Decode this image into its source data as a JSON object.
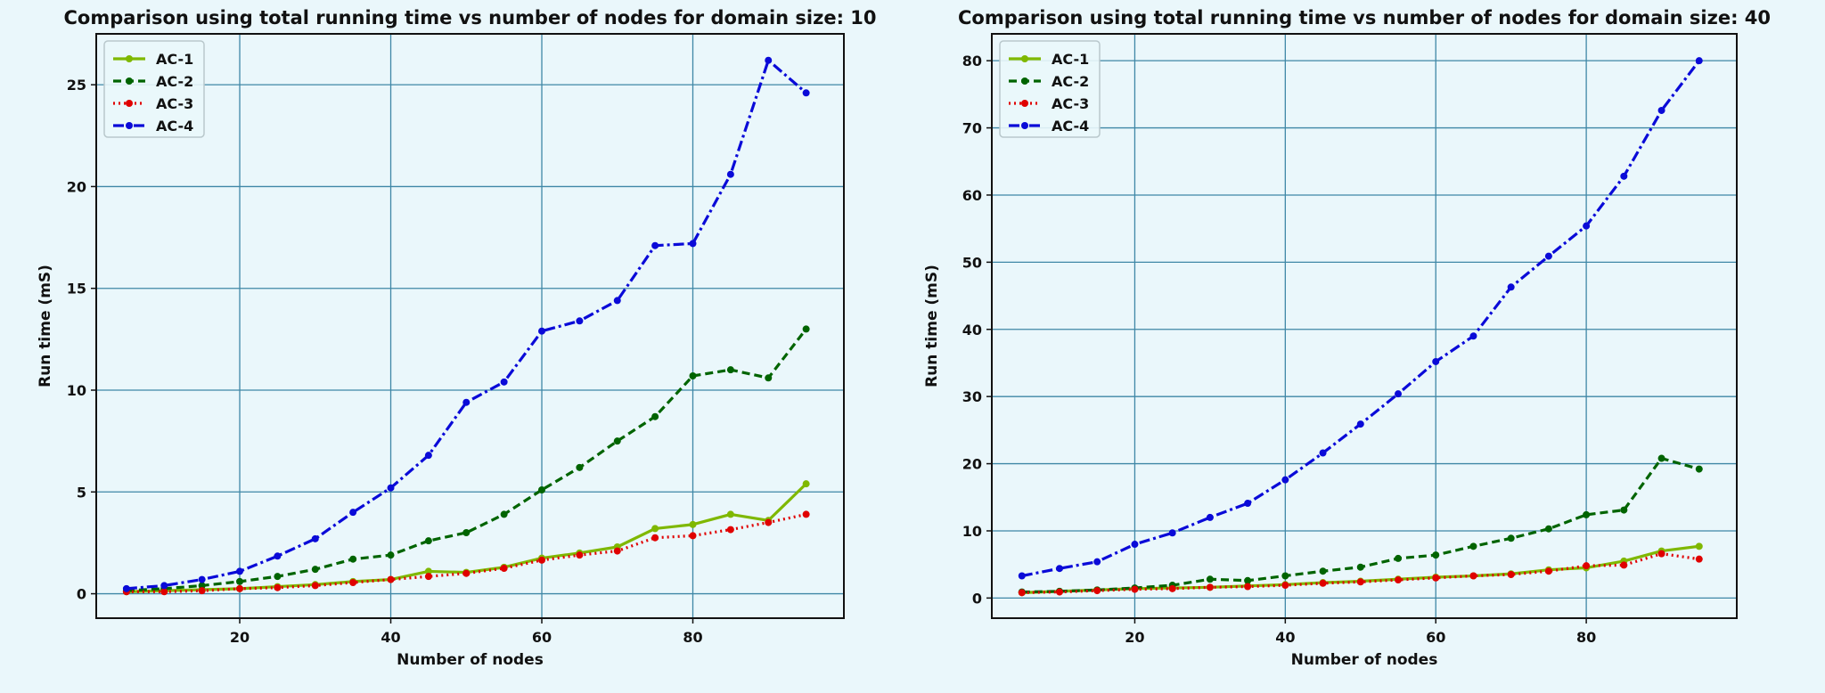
{
  "chart_data": [
    {
      "type": "line",
      "title": "Comparison using total running time vs number of nodes for domain size: 10",
      "xlabel": "Number of nodes",
      "ylabel": "Run time (mS)",
      "x": [
        5,
        10,
        15,
        20,
        25,
        30,
        35,
        40,
        45,
        50,
        55,
        60,
        65,
        70,
        75,
        80,
        85,
        90,
        95
      ],
      "xlim": [
        1,
        100
      ],
      "ylim": [
        -1.2,
        27.5
      ],
      "xticks": [
        20,
        40,
        60,
        80
      ],
      "yticks": [
        0,
        5,
        10,
        15,
        20,
        25
      ],
      "grid": true,
      "legend_position": "upper-left",
      "series": [
        {
          "name": "AC-1",
          "color": "#7fb800",
          "style": "solid",
          "values": [
            0.1,
            0.15,
            0.2,
            0.25,
            0.35,
            0.45,
            0.6,
            0.7,
            1.1,
            1.05,
            1.3,
            1.75,
            2.0,
            2.3,
            3.2,
            3.4,
            3.9,
            3.6,
            5.4
          ]
        },
        {
          "name": "AC-2",
          "color": "#006400",
          "style": "dashed",
          "values": [
            0.15,
            0.25,
            0.4,
            0.6,
            0.85,
            1.2,
            1.7,
            1.9,
            2.6,
            3.0,
            3.9,
            5.1,
            6.2,
            7.5,
            8.7,
            10.7,
            11.0,
            10.6,
            13.0
          ]
        },
        {
          "name": "AC-3",
          "color": "#e00000",
          "style": "dotted",
          "values": [
            0.1,
            0.1,
            0.15,
            0.25,
            0.3,
            0.4,
            0.55,
            0.7,
            0.85,
            1.0,
            1.25,
            1.65,
            1.9,
            2.1,
            2.75,
            2.85,
            3.15,
            3.5,
            3.9
          ]
        },
        {
          "name": "AC-4",
          "color": "#0a0ad8",
          "style": "dashdot",
          "values": [
            0.25,
            0.4,
            0.7,
            1.1,
            1.85,
            2.7,
            4.0,
            5.2,
            6.8,
            9.4,
            10.4,
            12.9,
            13.4,
            14.4,
            17.1,
            17.2,
            20.6,
            26.2,
            24.6
          ]
        }
      ]
    },
    {
      "type": "line",
      "title": "Comparison using total running time vs number of nodes for domain size: 40",
      "xlabel": "Number of nodes",
      "ylabel": "Run time (mS)",
      "x": [
        5,
        10,
        15,
        20,
        25,
        30,
        35,
        40,
        45,
        50,
        55,
        60,
        65,
        70,
        75,
        80,
        85,
        90,
        95
      ],
      "xlim": [
        1,
        100
      ],
      "ylim": [
        -3,
        84
      ],
      "xticks": [
        20,
        40,
        60,
        80
      ],
      "yticks": [
        0,
        10,
        20,
        30,
        40,
        50,
        60,
        70,
        80
      ],
      "grid": true,
      "legend_position": "upper-left",
      "series": [
        {
          "name": "AC-1",
          "color": "#7fb800",
          "style": "solid",
          "values": [
            0.8,
            1.0,
            1.2,
            1.4,
            1.5,
            1.6,
            1.8,
            2.0,
            2.3,
            2.5,
            2.8,
            3.1,
            3.3,
            3.6,
            4.2,
            4.5,
            5.5,
            7.0,
            7.7
          ]
        },
        {
          "name": "AC-2",
          "color": "#006400",
          "style": "dashed",
          "values": [
            0.9,
            1.0,
            1.2,
            1.5,
            1.9,
            2.8,
            2.6,
            3.3,
            4.0,
            4.6,
            5.9,
            6.4,
            7.7,
            8.9,
            10.3,
            12.4,
            13.1,
            20.8,
            19.2
          ]
        },
        {
          "name": "AC-3",
          "color": "#e00000",
          "style": "dotted",
          "values": [
            0.8,
            0.9,
            1.1,
            1.3,
            1.4,
            1.6,
            1.7,
            1.9,
            2.2,
            2.4,
            2.7,
            3.0,
            3.3,
            3.5,
            4.0,
            4.8,
            4.9,
            6.6,
            5.8
          ]
        },
        {
          "name": "AC-4",
          "color": "#0a0ad8",
          "style": "dashdot",
          "values": [
            3.3,
            4.4,
            5.4,
            8.0,
            9.7,
            12.0,
            14.1,
            17.6,
            21.6,
            25.9,
            30.4,
            35.2,
            39.0,
            46.3,
            50.9,
            55.4,
            62.8,
            72.6,
            80.0
          ]
        }
      ]
    }
  ]
}
